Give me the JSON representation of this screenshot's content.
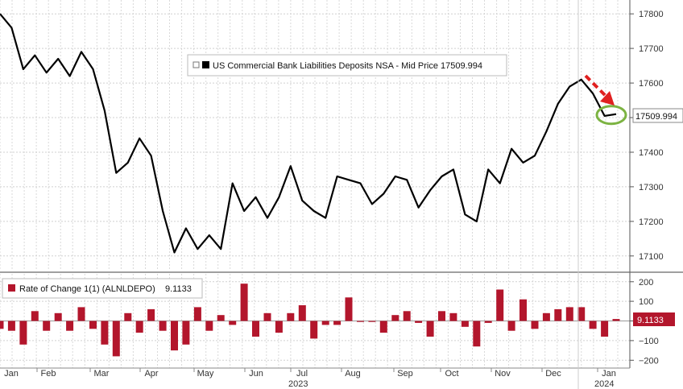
{
  "chart_data": [
    {
      "type": "line",
      "legend": "US Commercial Bank Liabilities Deposits NSA - Mid Price 17509.994",
      "series": [
        {
          "name": "US Commercial Bank Liabilities Deposits NSA - Mid Price",
          "values": [
            17800,
            17760,
            17640,
            17680,
            17630,
            17670,
            17620,
            17690,
            17640,
            17520,
            17340,
            17370,
            17440,
            17390,
            17230,
            17110,
            17180,
            17120,
            17160,
            17120,
            17310,
            17230,
            17270,
            17210,
            17270,
            17360,
            17260,
            17230,
            17210,
            17330,
            17320,
            17310,
            17250,
            17280,
            17330,
            17320,
            17240,
            17290,
            17330,
            17350,
            17220,
            17200,
            17350,
            17310,
            17410,
            17370,
            17390,
            17460,
            17540,
            17590,
            17610,
            17570,
            17505,
            17510
          ]
        }
      ],
      "last_value": "17509.994",
      "ylim": [
        17060,
        17840
      ],
      "yticks": [
        "17100",
        "17200",
        "17300",
        "17400",
        "17500",
        "17600",
        "17700",
        "17800"
      ],
      "grid": true,
      "legend_position": "top-center",
      "line_color": "#000000",
      "annotation": "red dashed arrow pointing down to green circle around last value"
    },
    {
      "type": "bar",
      "legend_name": "Rate of Change 1(1) (ALNLDEPO)",
      "legend_value": "9.1133",
      "series": [
        {
          "name": "Rate of Change 1(1) (ALNLDEPO)",
          "values": [
            -40,
            -50,
            -120,
            50,
            -50,
            40,
            -50,
            70,
            -40,
            -120,
            -180,
            40,
            -60,
            60,
            -50,
            -150,
            -120,
            70,
            -50,
            30,
            -20,
            190,
            -80,
            40,
            -60,
            40,
            80,
            -90,
            -20,
            -20,
            120,
            -5,
            -5,
            -60,
            30,
            50,
            -10,
            -80,
            50,
            40,
            -30,
            -130,
            -10,
            160,
            -50,
            110,
            -40,
            40,
            60,
            70,
            70,
            -40,
            -80,
            10
          ]
        }
      ],
      "last_value": "9.1133",
      "ylim": [
        -240,
        240
      ],
      "yticks": [
        "200",
        "100",
        "0",
        "−100",
        "−200"
      ],
      "grid": true,
      "legend_position": "top-left",
      "bar_color": "#b3162c"
    }
  ],
  "x_axis": {
    "months": [
      "Jan",
      "Feb",
      "Mar",
      "Apr",
      "May",
      "Jun",
      "Jul",
      "Aug",
      "Sep",
      "Oct",
      "Nov",
      "Dec",
      "Jan"
    ],
    "year_2023": "2023",
    "year_2024": "2024"
  },
  "colors": {
    "accent_red": "#e02020",
    "annotation_green": "#7cb342",
    "bar_red": "#b3162c",
    "grid": "#cccccc"
  }
}
